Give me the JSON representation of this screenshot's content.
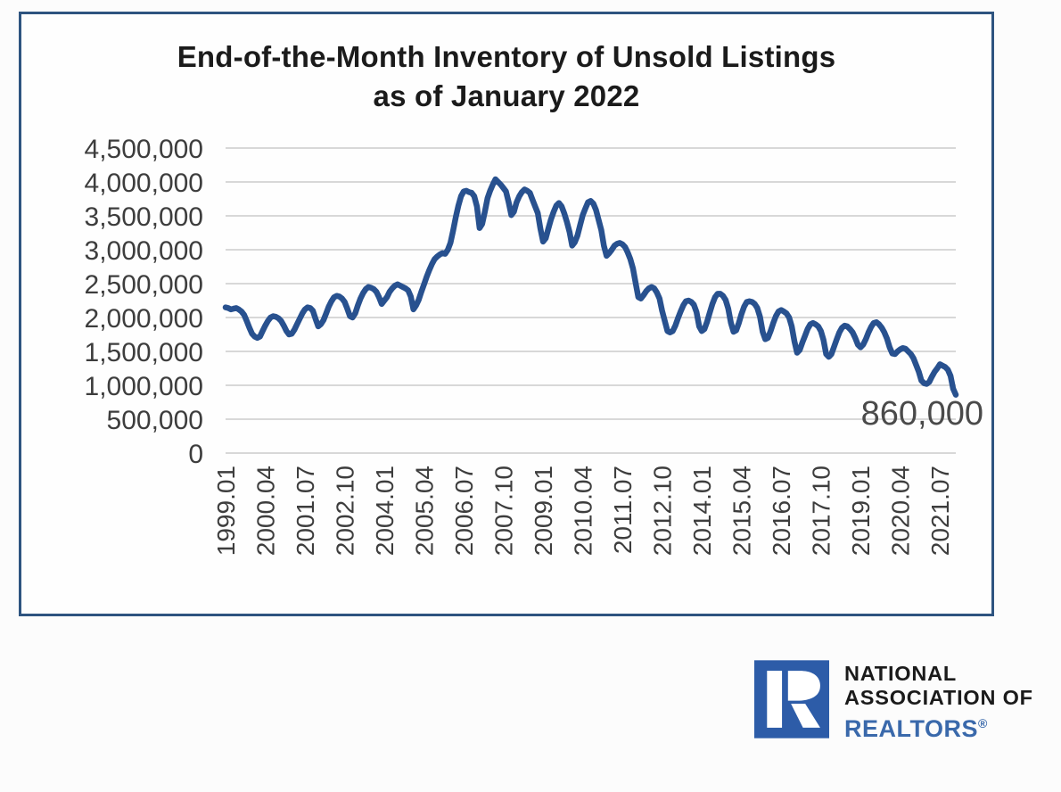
{
  "chart_box": {
    "border_color": "#2e5480",
    "background": "#fefefe"
  },
  "chart_data": {
    "type": "line",
    "title_line1": "End-of-the-Month Inventory of Unsold Listings",
    "title_line2": "as of January 2022",
    "series_name": "End-of-month inventory of unsold listings",
    "x_start": "1999.01",
    "x_end": "2022.01",
    "x_tick_interval_months": 15,
    "x_tick_labels": [
      "1999.01",
      "2000.04",
      "2001.07",
      "2002.10",
      "2004.01",
      "2005.04",
      "2006.07",
      "2007.10",
      "2009.01",
      "2010.04",
      "2011.07",
      "2012.10",
      "2014.01",
      "2015.04",
      "2016.07",
      "2017.10",
      "2019.01",
      "2020.04",
      "2021.07"
    ],
    "y_tick_labels": [
      "0",
      "500,000",
      "1,000,000",
      "1,500,000",
      "2,000,000",
      "2,500,000",
      "3,000,000",
      "3,500,000",
      "4,000,000",
      "4,500,000"
    ],
    "ylim": [
      0,
      4500000
    ],
    "gridlines": true,
    "legend": "none",
    "line_color": "#28518f",
    "grid_color": "#d8d8d8",
    "axis_text_color": "#3d3d3d",
    "annotation": {
      "text": "860,000",
      "value": 860000,
      "x": "2022.01"
    },
    "monthly_values": [
      2150000,
      2140000,
      2120000,
      2130000,
      2140000,
      2120000,
      2090000,
      2040000,
      1950000,
      1850000,
      1760000,
      1720000,
      1700000,
      1720000,
      1800000,
      1880000,
      1950000,
      2000000,
      2020000,
      2010000,
      1990000,
      1950000,
      1880000,
      1800000,
      1750000,
      1760000,
      1820000,
      1900000,
      1980000,
      2060000,
      2120000,
      2150000,
      2140000,
      2100000,
      1980000,
      1870000,
      1900000,
      1960000,
      2060000,
      2160000,
      2240000,
      2300000,
      2320000,
      2310000,
      2280000,
      2230000,
      2130000,
      2020000,
      2000000,
      2060000,
      2180000,
      2280000,
      2360000,
      2420000,
      2450000,
      2440000,
      2420000,
      2380000,
      2300000,
      2200000,
      2250000,
      2300000,
      2380000,
      2430000,
      2470000,
      2490000,
      2470000,
      2450000,
      2430000,
      2400000,
      2310000,
      2120000,
      2180000,
      2260000,
      2380000,
      2490000,
      2600000,
      2700000,
      2790000,
      2860000,
      2900000,
      2930000,
      2950000,
      2940000,
      3000000,
      3100000,
      3280000,
      3480000,
      3650000,
      3790000,
      3860000,
      3870000,
      3850000,
      3840000,
      3790000,
      3640000,
      3320000,
      3380000,
      3560000,
      3760000,
      3870000,
      3960000,
      4040000,
      4000000,
      3960000,
      3910000,
      3860000,
      3700000,
      3510000,
      3560000,
      3700000,
      3790000,
      3850000,
      3890000,
      3870000,
      3840000,
      3740000,
      3640000,
      3540000,
      3310000,
      3120000,
      3170000,
      3310000,
      3450000,
      3560000,
      3650000,
      3690000,
      3640000,
      3540000,
      3410000,
      3260000,
      3060000,
      3110000,
      3210000,
      3360000,
      3510000,
      3610000,
      3700000,
      3720000,
      3680000,
      3590000,
      3440000,
      3290000,
      3060000,
      2910000,
      2950000,
      3000000,
      3060000,
      3090000,
      3100000,
      3080000,
      3040000,
      2960000,
      2860000,
      2720000,
      2510000,
      2300000,
      2280000,
      2330000,
      2390000,
      2430000,
      2450000,
      2430000,
      2370000,
      2280000,
      2100000,
      1950000,
      1800000,
      1780000,
      1800000,
      1880000,
      1990000,
      2090000,
      2180000,
      2240000,
      2250000,
      2230000,
      2190000,
      2080000,
      1870000,
      1800000,
      1830000,
      1940000,
      2070000,
      2200000,
      2300000,
      2350000,
      2350000,
      2320000,
      2260000,
      2130000,
      1920000,
      1790000,
      1810000,
      1920000,
      2050000,
      2160000,
      2230000,
      2240000,
      2230000,
      2200000,
      2140000,
      2010000,
      1790000,
      1680000,
      1700000,
      1800000,
      1920000,
      2020000,
      2090000,
      2110000,
      2090000,
      2060000,
      2000000,
      1870000,
      1650000,
      1480000,
      1520000,
      1630000,
      1730000,
      1830000,
      1900000,
      1920000,
      1900000,
      1870000,
      1800000,
      1670000,
      1460000,
      1420000,
      1460000,
      1570000,
      1680000,
      1780000,
      1850000,
      1880000,
      1870000,
      1830000,
      1780000,
      1700000,
      1600000,
      1560000,
      1600000,
      1680000,
      1780000,
      1860000,
      1920000,
      1930000,
      1900000,
      1850000,
      1780000,
      1690000,
      1560000,
      1470000,
      1460000,
      1500000,
      1530000,
      1550000,
      1540000,
      1500000,
      1460000,
      1400000,
      1300000,
      1200000,
      1070000,
      1030000,
      1020000,
      1050000,
      1130000,
      1200000,
      1250000,
      1310000,
      1290000,
      1270000,
      1230000,
      1140000,
      950000,
      860000
    ]
  },
  "footer_logo": {
    "block_letter": "R",
    "block_color": "#2d5ca8",
    "line1": "NATIONAL",
    "line2": "ASSOCIATION OF",
    "line3": "REALTORS",
    "registered_mark": "®",
    "text_color": "#1b1b1b",
    "realtors_color": "#3a69ab"
  }
}
